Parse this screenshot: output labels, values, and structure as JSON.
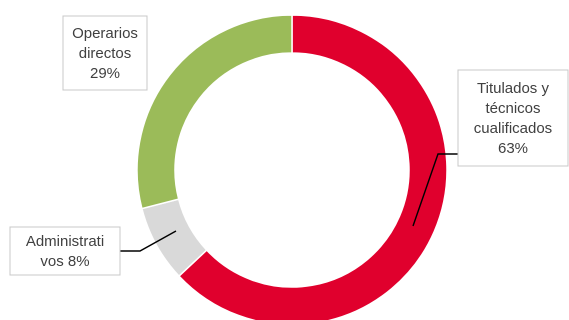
{
  "chart_data": {
    "type": "pie",
    "variant": "donut",
    "title": "",
    "slices": [
      {
        "label_lines": [
          "Titulados y",
          "técnicos",
          "cualificados"
        ],
        "value": 63,
        "value_label": "63%",
        "color": "#e0002d"
      },
      {
        "label_lines": [
          "Administrati",
          "vos 8%"
        ],
        "value": 8,
        "value_label": "",
        "color": "#d9d9d9"
      },
      {
        "label_lines": [
          "Operarios",
          "directos"
        ],
        "value": 29,
        "value_label": "29%",
        "color": "#9bbb59"
      }
    ],
    "start_angle_deg": 0,
    "direction": "clockwise",
    "legend": "none"
  }
}
